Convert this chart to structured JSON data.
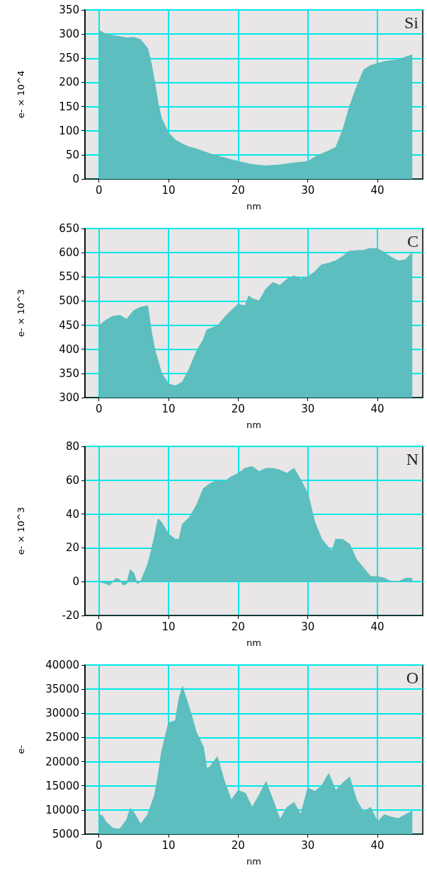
{
  "chart_data": [
    {
      "type": "area",
      "xlabel": "nm",
      "ylabel": "e- × 10^4",
      "annotations": [
        "Si"
      ],
      "grid": true,
      "marker": "none",
      "xlim": [
        -2,
        46.5
      ],
      "xticks": [
        0,
        10,
        20,
        30,
        40
      ],
      "ylim": [
        0,
        350
      ],
      "yticks": [
        0,
        50,
        100,
        150,
        200,
        250,
        300,
        350
      ],
      "series": [
        {
          "color": "#5cbebe",
          "x": [
            0,
            1,
            2,
            4,
            5,
            6,
            7,
            7.5,
            8,
            8.5,
            9,
            10,
            11,
            12,
            13,
            14,
            16,
            18,
            20,
            22,
            24,
            26,
            28,
            30,
            31,
            32,
            33,
            34,
            35,
            36,
            37,
            38,
            39,
            41,
            43,
            45
          ],
          "values": [
            307,
            300,
            297,
            292,
            293,
            288,
            270,
            240,
            200,
            155,
            125,
            95,
            80,
            72,
            66,
            62,
            52,
            44,
            36,
            30,
            27,
            29,
            33,
            36,
            45,
            52,
            58,
            65,
            100,
            150,
            190,
            225,
            235,
            243,
            247,
            257
          ]
        }
      ]
    },
    {
      "type": "area",
      "xlabel": "nm",
      "ylabel": "e- × 10^3",
      "annotations": [
        "C"
      ],
      "grid": true,
      "marker": "none",
      "xlim": [
        -2,
        46.5
      ],
      "xticks": [
        0,
        10,
        20,
        30,
        40
      ],
      "ylim": [
        300,
        650
      ],
      "yticks": [
        300,
        350,
        400,
        450,
        500,
        550,
        600,
        650
      ],
      "series": [
        {
          "color": "#5cbebe",
          "x": [
            0,
            1,
            2,
            3,
            4,
            5,
            6,
            7,
            7.5,
            8,
            9,
            10,
            11,
            12,
            13,
            14,
            15,
            15.5,
            17,
            18,
            19,
            20,
            21,
            21.5,
            22,
            23,
            24,
            25,
            26,
            27,
            28,
            29,
            30,
            31,
            32,
            33,
            34,
            35,
            36,
            38,
            39,
            40,
            41,
            42,
            43,
            44,
            45
          ],
          "values": [
            448,
            460,
            468,
            470,
            462,
            480,
            487,
            490,
            440,
            400,
            350,
            328,
            324,
            332,
            360,
            395,
            420,
            440,
            448,
            465,
            480,
            493,
            490,
            510,
            505,
            500,
            525,
            538,
            532,
            545,
            552,
            545,
            550,
            560,
            575,
            578,
            583,
            592,
            603,
            605,
            609,
            608,
            600,
            590,
            583,
            585,
            600
          ]
        }
      ]
    },
    {
      "type": "area",
      "xlabel": "nm",
      "ylabel": "e- × 10^3",
      "annotations": [
        "N"
      ],
      "grid": true,
      "marker": "none",
      "xlim": [
        -2,
        46.5
      ],
      "xticks": [
        0,
        10,
        20,
        30,
        40
      ],
      "ylim": [
        -20,
        80
      ],
      "yticks": [
        -20,
        0,
        20,
        40,
        60,
        80
      ],
      "series": [
        {
          "color": "#5cbebe",
          "x": [
            0,
            1,
            1.5,
            2.5,
            3,
            3.5,
            4,
            4.5,
            5,
            5.5,
            6,
            7,
            7.5,
            8,
            8.5,
            9,
            10,
            11,
            11.5,
            12,
            13,
            14,
            15,
            16,
            17,
            18,
            19,
            20,
            21,
            22,
            23,
            24,
            25,
            26,
            27,
            28,
            29,
            30,
            31,
            32,
            33,
            33.5,
            34,
            35,
            36,
            37,
            38,
            39,
            40,
            41,
            42,
            43,
            44,
            45
          ],
          "values": [
            0,
            -1,
            -2,
            2,
            1,
            -2,
            -1,
            7,
            5,
            -1,
            0,
            10,
            18,
            27,
            37,
            35,
            28,
            25,
            25,
            34,
            38,
            45,
            55,
            58,
            60,
            59,
            62,
            64,
            67,
            68,
            65,
            67,
            67,
            66,
            64,
            67,
            60,
            52,
            35,
            25,
            20,
            18,
            25,
            25,
            22,
            13,
            8,
            3,
            3,
            2,
            0,
            0,
            2,
            2
          ]
        }
      ]
    },
    {
      "type": "area",
      "xlabel": "nm",
      "ylabel": "e-",
      "annotations": [
        "O"
      ],
      "grid": true,
      "marker": "none",
      "xlim": [
        -2,
        46.5
      ],
      "xticks": [
        0,
        10,
        20,
        30,
        40
      ],
      "ylim": [
        5000,
        40000
      ],
      "yticks": [
        5000,
        10000,
        15000,
        20000,
        25000,
        30000,
        35000,
        40000
      ],
      "series": [
        {
          "color": "#5cbebe",
          "x": [
            0,
            0.5,
            1,
            2,
            3,
            4,
            4.5,
            5,
            6,
            7,
            8,
            8.5,
            9,
            10,
            11,
            11.5,
            12,
            13,
            14,
            15,
            15.5,
            16,
            17,
            18,
            19,
            20,
            21,
            22,
            23,
            24,
            25,
            26,
            27,
            28,
            29,
            30,
            31,
            32,
            33,
            34,
            35,
            36,
            37,
            38,
            39,
            40,
            41,
            42,
            43,
            44,
            45
          ],
          "values": [
            9000,
            8800,
            7500,
            6200,
            6000,
            8000,
            10300,
            9500,
            7000,
            9000,
            13000,
            17000,
            22000,
            28000,
            28500,
            33000,
            35500,
            31000,
            26000,
            23000,
            18500,
            19000,
            21000,
            16000,
            12000,
            14000,
            13500,
            10500,
            13000,
            15800,
            12000,
            8000,
            10500,
            11500,
            9000,
            14500,
            13800,
            15000,
            17500,
            14000,
            15500,
            16800,
            12000,
            9500,
            10500,
            7500,
            9000,
            8500,
            8200,
            9000,
            9800
          ]
        }
      ]
    }
  ]
}
